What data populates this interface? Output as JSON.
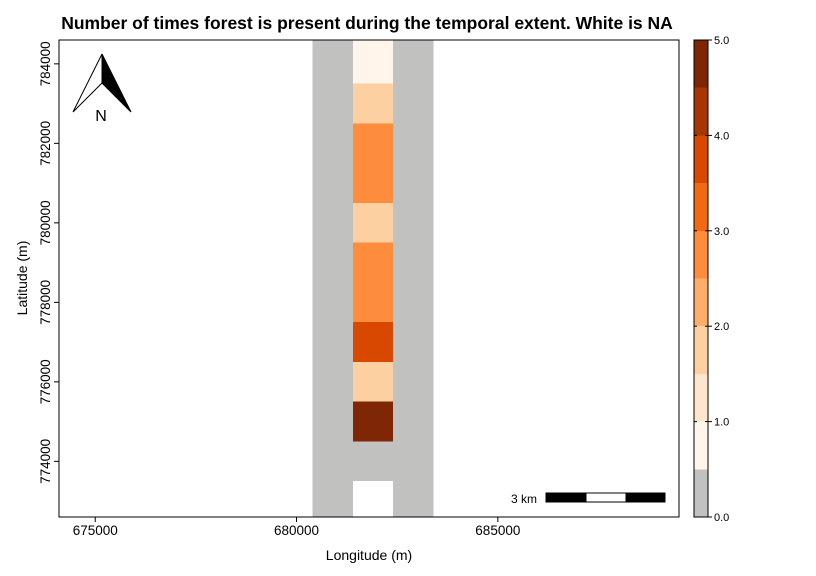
{
  "chart_data": {
    "type": "heatmap",
    "title": "Number of times forest is present during the temporal extent. White is NA",
    "xlabel": "Longitude (m)",
    "ylabel": "Latitude (m)",
    "xlim": [
      674100,
      689500
    ],
    "ylim": [
      772600,
      784600
    ],
    "x_ticks": [
      675000,
      680000,
      685000
    ],
    "x_tick_labels": [
      "675000",
      "680000",
      "685000"
    ],
    "y_ticks": [
      774000,
      776000,
      778000,
      780000,
      782000,
      784000
    ],
    "y_tick_labels": [
      "774000",
      "776000",
      "778000",
      "780000",
      "782000",
      "784000"
    ],
    "grid": false,
    "legend": {
      "placement": "right",
      "range": [
        0,
        5
      ],
      "breaks": [
        0,
        0.5,
        1,
        1.5,
        2,
        2.5,
        3,
        3.5,
        4,
        4.5,
        5
      ],
      "colors": [
        "#c1c1bf",
        "#fff5eb",
        "#fee6ce",
        "#fdd0a2",
        "#fdae6b",
        "#fd8d3c",
        "#f16913",
        "#d94801",
        "#a63603",
        "#7f2704"
      ],
      "tick_values": [
        0,
        1,
        2,
        3,
        4,
        5
      ],
      "tick_labels": [
        "0.0",
        "1.0",
        "2.0",
        "3.0",
        "4.0",
        "5.0"
      ]
    },
    "cells": [
      {
        "x0": 680400,
        "x1": 681400,
        "y0": 772600,
        "y1": 784600,
        "value": 0
      },
      {
        "x0": 682400,
        "x1": 683400,
        "y0": 772600,
        "y1": 784600,
        "value": 0
      },
      {
        "x0": 681400,
        "x1": 682400,
        "y0": 773500,
        "y1": 774500,
        "value": 0
      },
      {
        "x0": 681400,
        "x1": 682400,
        "y0": 774500,
        "y1": 775500,
        "value": 5
      },
      {
        "x0": 681400,
        "x1": 682400,
        "y0": 775500,
        "y1": 776500,
        "value": 2
      },
      {
        "x0": 681400,
        "x1": 682400,
        "y0": 776500,
        "y1": 777500,
        "value": 4
      },
      {
        "x0": 681400,
        "x1": 682400,
        "y0": 777500,
        "y1": 779500,
        "value": 3
      },
      {
        "x0": 681400,
        "x1": 682400,
        "y0": 779500,
        "y1": 780500,
        "value": 2
      },
      {
        "x0": 681400,
        "x1": 682400,
        "y0": 780500,
        "y1": 782500,
        "value": 3
      },
      {
        "x0": 681400,
        "x1": 682400,
        "y0": 782500,
        "y1": 783500,
        "value": 2
      },
      {
        "x0": 681400,
        "x1": 682400,
        "y0": 783500,
        "y1": 784600,
        "value": 1
      }
    ],
    "na_cells": [
      {
        "x0": 681400,
        "x1": 682400,
        "y0": 772600,
        "y1": 773500
      }
    ],
    "na_color": "#ffffff",
    "north_arrow": {
      "label": "N",
      "placement": "top-left"
    },
    "scale_bar": {
      "label": "3 km",
      "placement": "bottom-right",
      "length_km": 3
    }
  }
}
